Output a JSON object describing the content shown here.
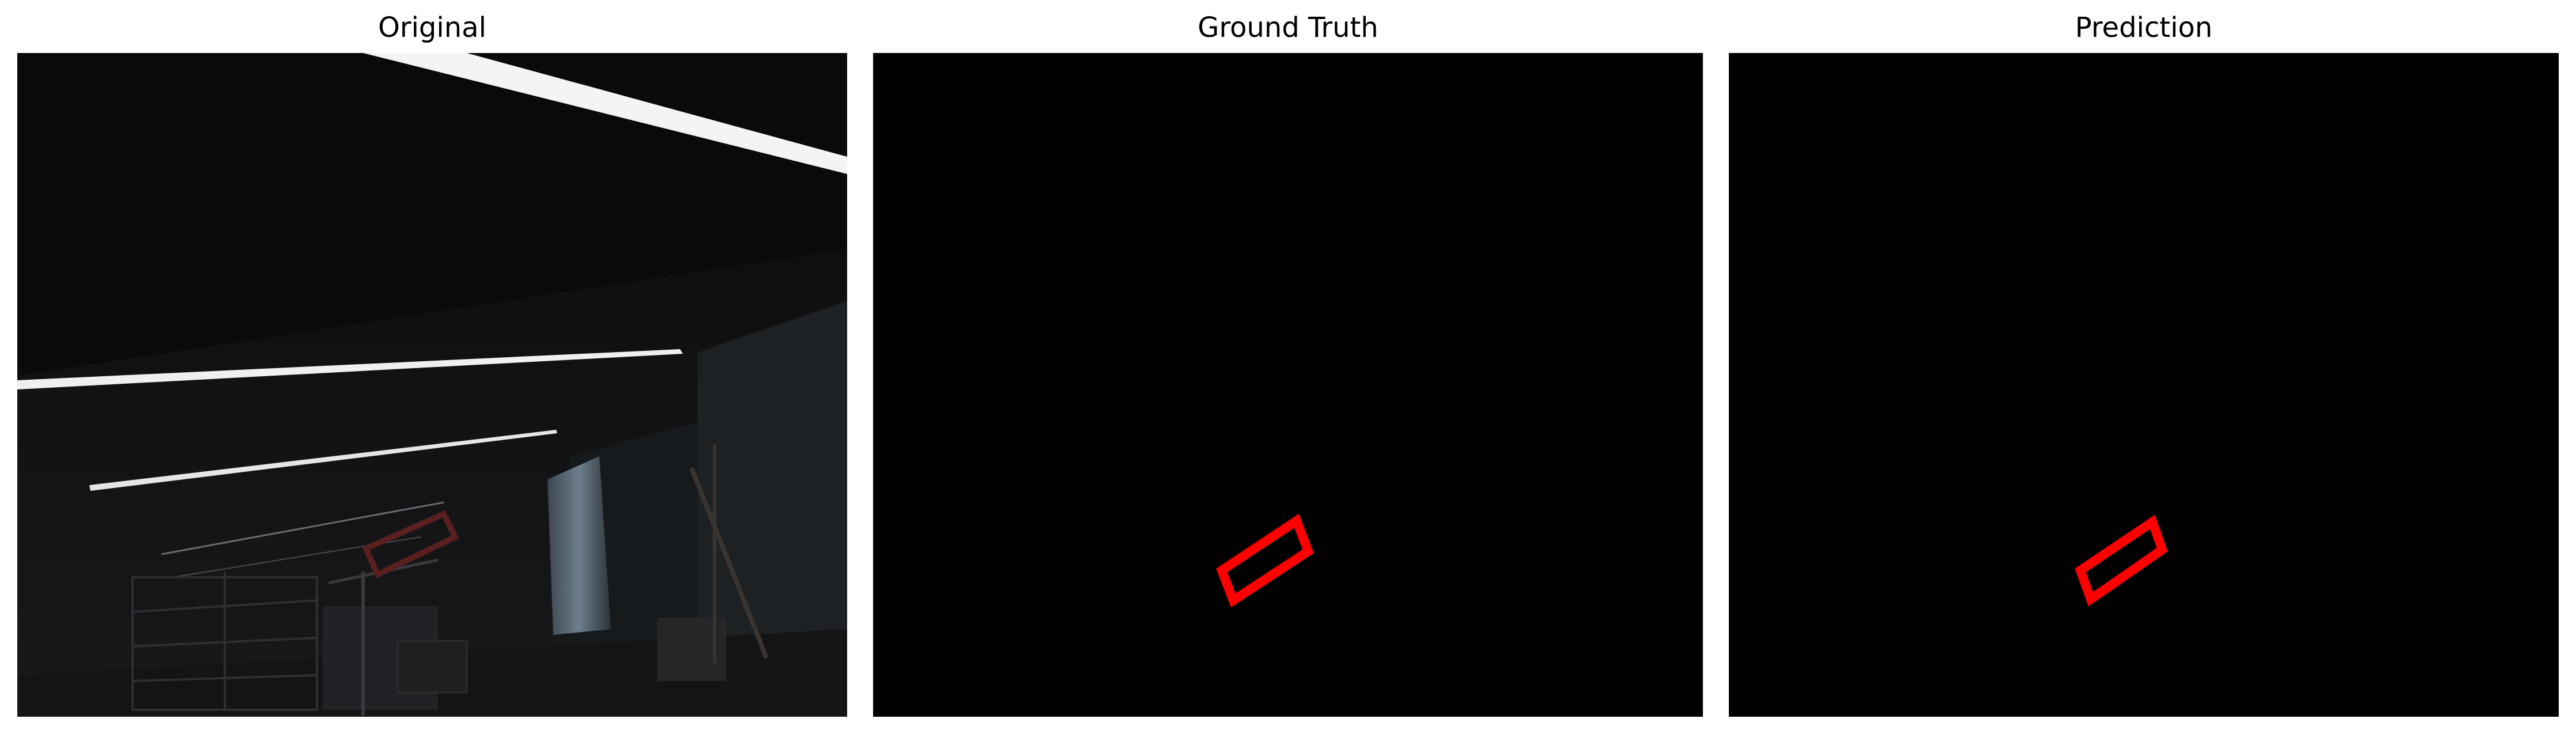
{
  "panels": [
    {
      "title": "Original"
    },
    {
      "title": "Ground Truth"
    },
    {
      "title": "Prediction"
    }
  ],
  "colors": {
    "background": "#ffffff",
    "mask_background": "#000000",
    "mask_outline": "#ff0000",
    "scene_dark": "#0d0d0e"
  }
}
